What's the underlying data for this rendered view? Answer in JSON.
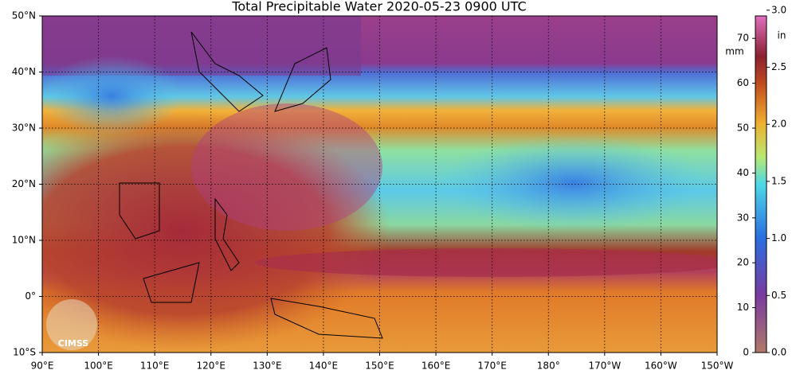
{
  "map": {
    "title": "Total Precipitable Water  2020-05-23 0900 UTC",
    "xlim": [
      90,
      210
    ],
    "ylim": [
      -10,
      50
    ],
    "grid": true,
    "lon_ticks": [
      {
        "value": 90,
        "label": "90°E"
      },
      {
        "value": 100,
        "label": "100°E"
      },
      {
        "value": 110,
        "label": "110°E"
      },
      {
        "value": 120,
        "label": "120°E"
      },
      {
        "value": 130,
        "label": "130°E"
      },
      {
        "value": 140,
        "label": "140°E"
      },
      {
        "value": 150,
        "label": "150°E"
      },
      {
        "value": 160,
        "label": "160°E"
      },
      {
        "value": 170,
        "label": "170°E"
      },
      {
        "value": 180,
        "label": "180°"
      },
      {
        "value": 190,
        "label": "170°W"
      },
      {
        "value": 200,
        "label": "160°W"
      },
      {
        "value": 210,
        "label": "150°W"
      }
    ],
    "lat_ticks": [
      {
        "value": 50,
        "label": "50°N"
      },
      {
        "value": 40,
        "label": "40°N"
      },
      {
        "value": 30,
        "label": "30°N"
      },
      {
        "value": 20,
        "label": "20°N"
      },
      {
        "value": 10,
        "label": "10°N"
      },
      {
        "value": 0,
        "label": "0°"
      },
      {
        "value": -10,
        "label": "10°S"
      }
    ],
    "colorbar": {
      "mm_label": "mm",
      "in_label": "in",
      "ylim": [
        0,
        75
      ],
      "yticks": [
        0,
        10,
        20,
        30,
        40,
        50,
        60,
        70
      ],
      "y2lim": [
        0,
        2.95
      ],
      "y2ticks": [
        {
          "value": 0,
          "label": "0.0"
        },
        {
          "value": 0.5,
          "label": "0.5"
        },
        {
          "value": 1,
          "label": "1.0"
        },
        {
          "value": 1.5,
          "label": "1.5"
        },
        {
          "value": 2,
          "label": "2.0"
        },
        {
          "value": 2.5,
          "label": "2.5"
        },
        {
          "value": 3,
          "label": "3.0"
        }
      ]
    },
    "logo": "CIMSS"
  }
}
